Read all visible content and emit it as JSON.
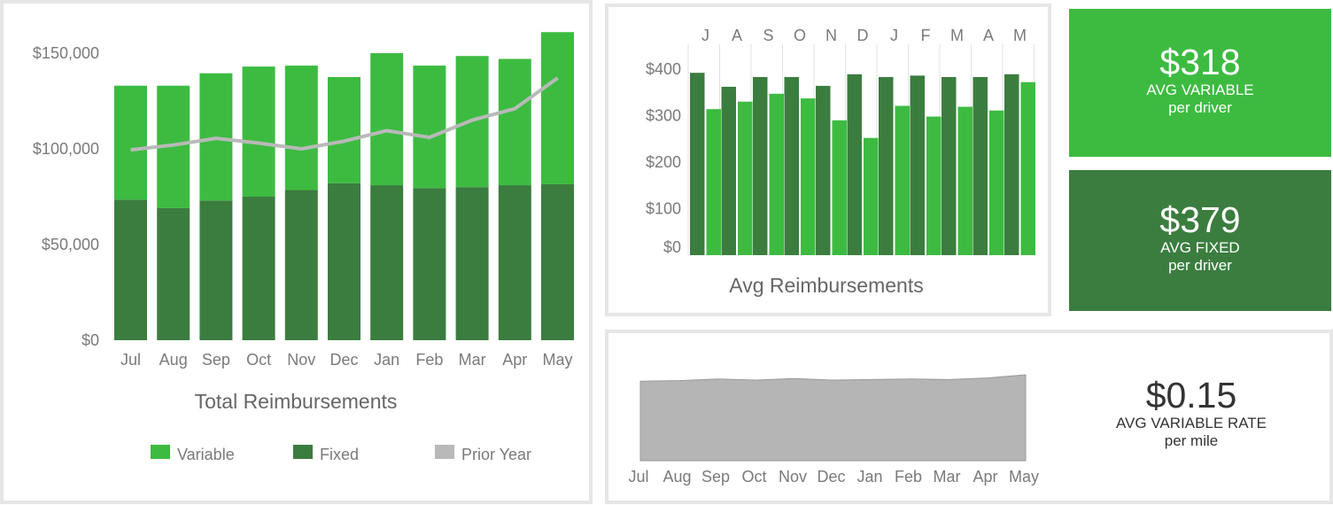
{
  "colors": {
    "variable": "#3dbb41",
    "fixed": "#3b7d3f",
    "prior_year": "#b9b9b9",
    "area": "#b5b5b5",
    "panel_border": "#e6e6e6",
    "axis_text": "#7a7a7a"
  },
  "chart_data": [
    {
      "type": "bar",
      "stacked": true,
      "title": "Total Reimbursements",
      "categories": [
        "Jul",
        "Aug",
        "Sep",
        "Oct",
        "Nov",
        "Dec",
        "Jan",
        "Feb",
        "Mar",
        "Apr",
        "May"
      ],
      "series": [
        {
          "name": "Fixed",
          "values": [
            73500,
            69000,
            73000,
            75000,
            78500,
            82000,
            81000,
            79500,
            80000,
            81000,
            81500
          ]
        },
        {
          "name": "Variable",
          "values": [
            59500,
            64000,
            66500,
            68000,
            65000,
            55500,
            69000,
            64000,
            68500,
            66000,
            79500
          ]
        },
        {
          "name": "Prior Year",
          "type": "line",
          "values": [
            99500,
            102000,
            105500,
            103000,
            100000,
            104000,
            109500,
            106000,
            115000,
            121000,
            137000
          ]
        }
      ],
      "yticks": [
        "$150,000",
        "$100,000",
        "$50,000",
        "$0"
      ],
      "ylim": [
        0,
        150000
      ],
      "legend": [
        "Variable",
        "Fixed",
        "Prior Year"
      ],
      "legend_position": "bottom"
    },
    {
      "type": "bar",
      "title": "Avg Reimbursements",
      "categories": [
        "J",
        "A",
        "S",
        "O",
        "N",
        "D",
        "J",
        "F",
        "M",
        "A",
        "M"
      ],
      "series": [
        {
          "name": "Fixed",
          "values": [
            392,
            362,
            383,
            383,
            364,
            389,
            383,
            386,
            383,
            383,
            389
          ]
        },
        {
          "name": "Variable",
          "values": [
            314,
            330,
            347,
            337,
            290,
            252,
            321,
            298,
            319,
            311,
            372
          ]
        }
      ],
      "yticks": [
        "$400",
        "$300",
        "$200",
        "$100",
        "$0"
      ],
      "ylim": [
        0,
        400
      ],
      "xaxis_position": "top"
    },
    {
      "type": "area",
      "categories": [
        "Jul",
        "Aug",
        "Sep",
        "Oct",
        "Nov",
        "Dec",
        "Jan",
        "Feb",
        "Mar",
        "Apr",
        "May"
      ],
      "values": [
        0.15,
        0.151,
        0.154,
        0.152,
        0.155,
        0.152,
        0.153,
        0.154,
        0.153,
        0.156,
        0.162
      ],
      "ylim": [
        0,
        0.162
      ],
      "yaxis_visible": false
    }
  ],
  "kpis": {
    "variable": {
      "value": "$318",
      "label": "AVG VARIABLE",
      "sub": "per driver"
    },
    "fixed": {
      "value": "$379",
      "label": "AVG FIXED",
      "sub": "per driver"
    },
    "rate": {
      "value": "$0.15",
      "label": "AVG VARIABLE RATE",
      "sub": "per mile"
    }
  }
}
